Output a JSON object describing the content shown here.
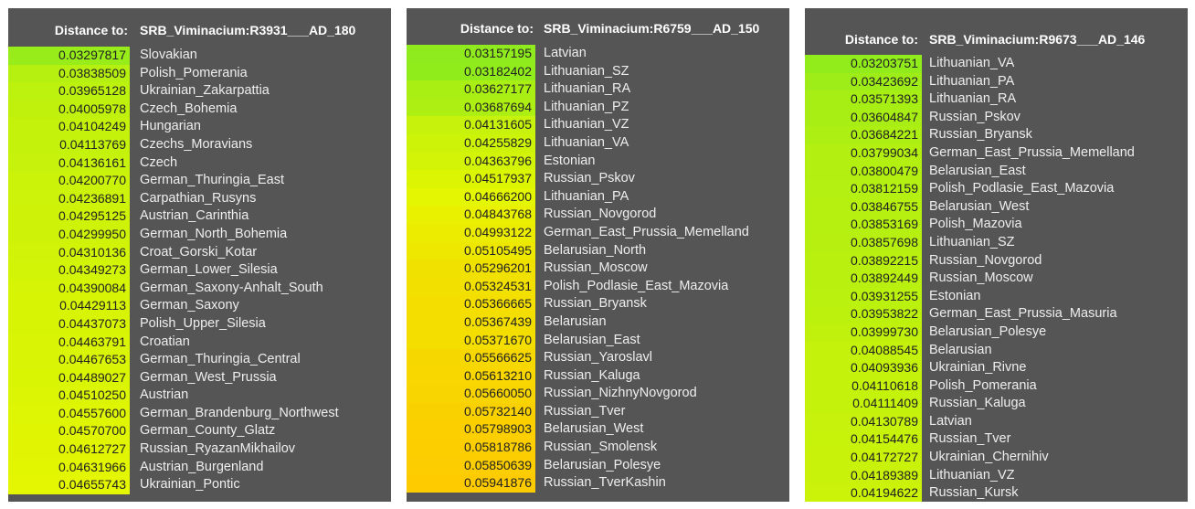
{
  "header_label": "Distance to:",
  "panels": [
    {
      "target": "SRB_Viminacium:R3931___AD_180",
      "rows": [
        {
          "value": "0.03297817",
          "name": "Slovakian"
        },
        {
          "value": "0.03838509",
          "name": "Polish_Pomerania"
        },
        {
          "value": "0.03965128",
          "name": "Ukrainian_Zakarpattia"
        },
        {
          "value": "0.04005978",
          "name": "Czech_Bohemia"
        },
        {
          "value": "0.04104249",
          "name": "Hungarian"
        },
        {
          "value": "0.04113769",
          "name": "Czechs_Moravians"
        },
        {
          "value": "0.04136161",
          "name": "Czech"
        },
        {
          "value": "0.04200770",
          "name": "German_Thuringia_East"
        },
        {
          "value": "0.04236891",
          "name": "Carpathian_Rusyns"
        },
        {
          "value": "0.04295125",
          "name": "Austrian_Carinthia"
        },
        {
          "value": "0.04299950",
          "name": "German_North_Bohemia"
        },
        {
          "value": "0.04310136",
          "name": "Croat_Gorski_Kotar"
        },
        {
          "value": "0.04349273",
          "name": "German_Lower_Silesia"
        },
        {
          "value": "0.04390084",
          "name": "German_Saxony-Anhalt_South"
        },
        {
          "value": "0.04429113",
          "name": "German_Saxony"
        },
        {
          "value": "0.04437073",
          "name": "Polish_Upper_Silesia"
        },
        {
          "value": "0.04463791",
          "name": "Croatian"
        },
        {
          "value": "0.04467653",
          "name": "German_Thuringia_Central"
        },
        {
          "value": "0.04489027",
          "name": "German_West_Prussia"
        },
        {
          "value": "0.04510250",
          "name": "Austrian"
        },
        {
          "value": "0.04557600",
          "name": "German_Brandenburg_Northwest"
        },
        {
          "value": "0.04570700",
          "name": "German_County_Glatz"
        },
        {
          "value": "0.04612727",
          "name": "Russian_RyazanMikhailov"
        },
        {
          "value": "0.04631966",
          "name": "Austrian_Burgenland"
        },
        {
          "value": "0.04655743",
          "name": "Ukrainian_Pontic"
        }
      ]
    },
    {
      "target": "SRB_Viminacium:R6759___AD_150",
      "rows": [
        {
          "value": "0.03157195",
          "name": "Latvian"
        },
        {
          "value": "0.03182402",
          "name": "Lithuanian_SZ"
        },
        {
          "value": "0.03627177",
          "name": "Lithuanian_RA"
        },
        {
          "value": "0.03687694",
          "name": "Lithuanian_PZ"
        },
        {
          "value": "0.04131605",
          "name": "Lithuanian_VZ"
        },
        {
          "value": "0.04255829",
          "name": "Lithuanian_VA"
        },
        {
          "value": "0.04363796",
          "name": "Estonian"
        },
        {
          "value": "0.04517937",
          "name": "Russian_Pskov"
        },
        {
          "value": "0.04666200",
          "name": "Lithuanian_PA"
        },
        {
          "value": "0.04843768",
          "name": "Russian_Novgorod"
        },
        {
          "value": "0.04993122",
          "name": "German_East_Prussia_Memelland"
        },
        {
          "value": "0.05105495",
          "name": "Belarusian_North"
        },
        {
          "value": "0.05296201",
          "name": "Russian_Moscow"
        },
        {
          "value": "0.05324531",
          "name": "Polish_Podlasie_East_Mazovia"
        },
        {
          "value": "0.05366665",
          "name": "Russian_Bryansk"
        },
        {
          "value": "0.05367439",
          "name": "Belarusian"
        },
        {
          "value": "0.05371670",
          "name": "Belarusian_East"
        },
        {
          "value": "0.05566625",
          "name": "Russian_Yaroslavl"
        },
        {
          "value": "0.05613210",
          "name": "Russian_Kaluga"
        },
        {
          "value": "0.05660050",
          "name": "Russian_NizhnyNovgorod"
        },
        {
          "value": "0.05732140",
          "name": "Russian_Tver"
        },
        {
          "value": "0.05798903",
          "name": "Belarusian_West"
        },
        {
          "value": "0.05818786",
          "name": "Russian_Smolensk"
        },
        {
          "value": "0.05850639",
          "name": "Belarusian_Polesye"
        },
        {
          "value": "0.05941876",
          "name": "Russian_TverKashin"
        }
      ]
    },
    {
      "target": "SRB_Viminacium:R9673___AD_146",
      "rows": [
        {
          "value": "0.03203751",
          "name": "Lithuanian_VA"
        },
        {
          "value": "0.03423692",
          "name": "Lithuanian_PA"
        },
        {
          "value": "0.03571393",
          "name": "Lithuanian_RA"
        },
        {
          "value": "0.03604847",
          "name": "Russian_Pskov"
        },
        {
          "value": "0.03684221",
          "name": "Russian_Bryansk"
        },
        {
          "value": "0.03799034",
          "name": "German_East_Prussia_Memelland"
        },
        {
          "value": "0.03800479",
          "name": "Belarusian_East"
        },
        {
          "value": "0.03812159",
          "name": "Polish_Podlasie_East_Mazovia"
        },
        {
          "value": "0.03846755",
          "name": "Belarusian_West"
        },
        {
          "value": "0.03853169",
          "name": "Polish_Mazovia"
        },
        {
          "value": "0.03857698",
          "name": "Lithuanian_SZ"
        },
        {
          "value": "0.03892215",
          "name": "Russian_Novgorod"
        },
        {
          "value": "0.03892449",
          "name": "Russian_Moscow"
        },
        {
          "value": "0.03931255",
          "name": "Estonian"
        },
        {
          "value": "0.03953822",
          "name": "German_East_Prussia_Masuria"
        },
        {
          "value": "0.03999730",
          "name": "Belarusian_Polesye"
        },
        {
          "value": "0.04088545",
          "name": "Belarusian"
        },
        {
          "value": "0.04093936",
          "name": "Ukrainian_Rivne"
        },
        {
          "value": "0.04110618",
          "name": "Polish_Pomerania"
        },
        {
          "value": "0.04111409",
          "name": "Russian_Kaluga"
        },
        {
          "value": "0.04130789",
          "name": "Latvian"
        },
        {
          "value": "0.04154476",
          "name": "Russian_Tver"
        },
        {
          "value": "0.04172727",
          "name": "Ukrainian_Chernihiv"
        },
        {
          "value": "0.04189389",
          "name": "Lithuanian_VZ"
        },
        {
          "value": "0.04194622",
          "name": "Russian_Kursk"
        }
      ]
    }
  ]
}
